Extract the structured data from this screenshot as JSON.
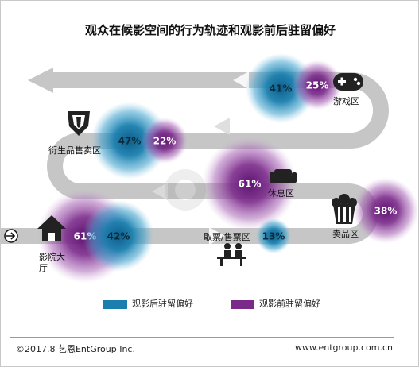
{
  "title": "观众在候影空间的行为轨迹和观影前后驻留偏好",
  "chart_data": {
    "type": "bubble-path",
    "title": "观众在候影空间的行为轨迹和观影前后驻留偏好",
    "series": [
      {
        "name": "观影后驻留偏好",
        "color": "#1a7fae"
      },
      {
        "name": "观影前驻留偏好",
        "color": "#7b2a8a"
      }
    ],
    "points": [
      {
        "zone": "影院大厅",
        "after": 42,
        "before": 61
      },
      {
        "zone": "取票/售票区",
        "after": 13,
        "before": null
      },
      {
        "zone": "卖品区",
        "after": null,
        "before": 38
      },
      {
        "zone": "休息区",
        "after": null,
        "before": 61
      },
      {
        "zone": "衍生品售卖区",
        "after": 47,
        "before": 22
      },
      {
        "zone": "游戏区",
        "after": 41,
        "before": 25
      }
    ],
    "unit": "%"
  },
  "bubbles": [
    {
      "id": "lobby-after",
      "label": "42%",
      "value": 42,
      "kind": "after"
    },
    {
      "id": "lobby-before",
      "label": "61%",
      "value": 61,
      "kind": "before"
    },
    {
      "id": "ticket-after",
      "label": "13%",
      "value": 13,
      "kind": "after"
    },
    {
      "id": "food-before",
      "label": "38%",
      "value": 38,
      "kind": "before"
    },
    {
      "id": "rest-before",
      "label": "61%",
      "value": 61,
      "kind": "before"
    },
    {
      "id": "merch-after",
      "label": "47%",
      "value": 47,
      "kind": "after"
    },
    {
      "id": "merch-before",
      "label": "22%",
      "value": 22,
      "kind": "before"
    },
    {
      "id": "game-after",
      "label": "41%",
      "value": 41,
      "kind": "after"
    },
    {
      "id": "game-before",
      "label": "25%",
      "value": 25,
      "kind": "before"
    }
  ],
  "zones": {
    "lobby": "影院大厅",
    "ticket": "取票/售票区",
    "food": "卖品区",
    "rest": "休息区",
    "merch": "衍生品售卖区",
    "game": "游戏区"
  },
  "icons": {
    "entry": "enter-arrow-icon",
    "lobby": "house-icon",
    "ticket": "ticket-counter-icon",
    "food": "popcorn-icon",
    "rest": "sofa-icon",
    "merch": "transformers-logo-icon",
    "game": "gamepad-icon"
  },
  "colors": {
    "after": "#1a7fae",
    "before": "#7b2a8a",
    "path": "#c6c6c6"
  },
  "legend": {
    "after": "观影后驻留偏好",
    "before": "观影前驻留偏好"
  },
  "footer": {
    "copyright": "©2017.8 艺恩EntGroup Inc.",
    "url": "www.entgroup.com.cn"
  }
}
